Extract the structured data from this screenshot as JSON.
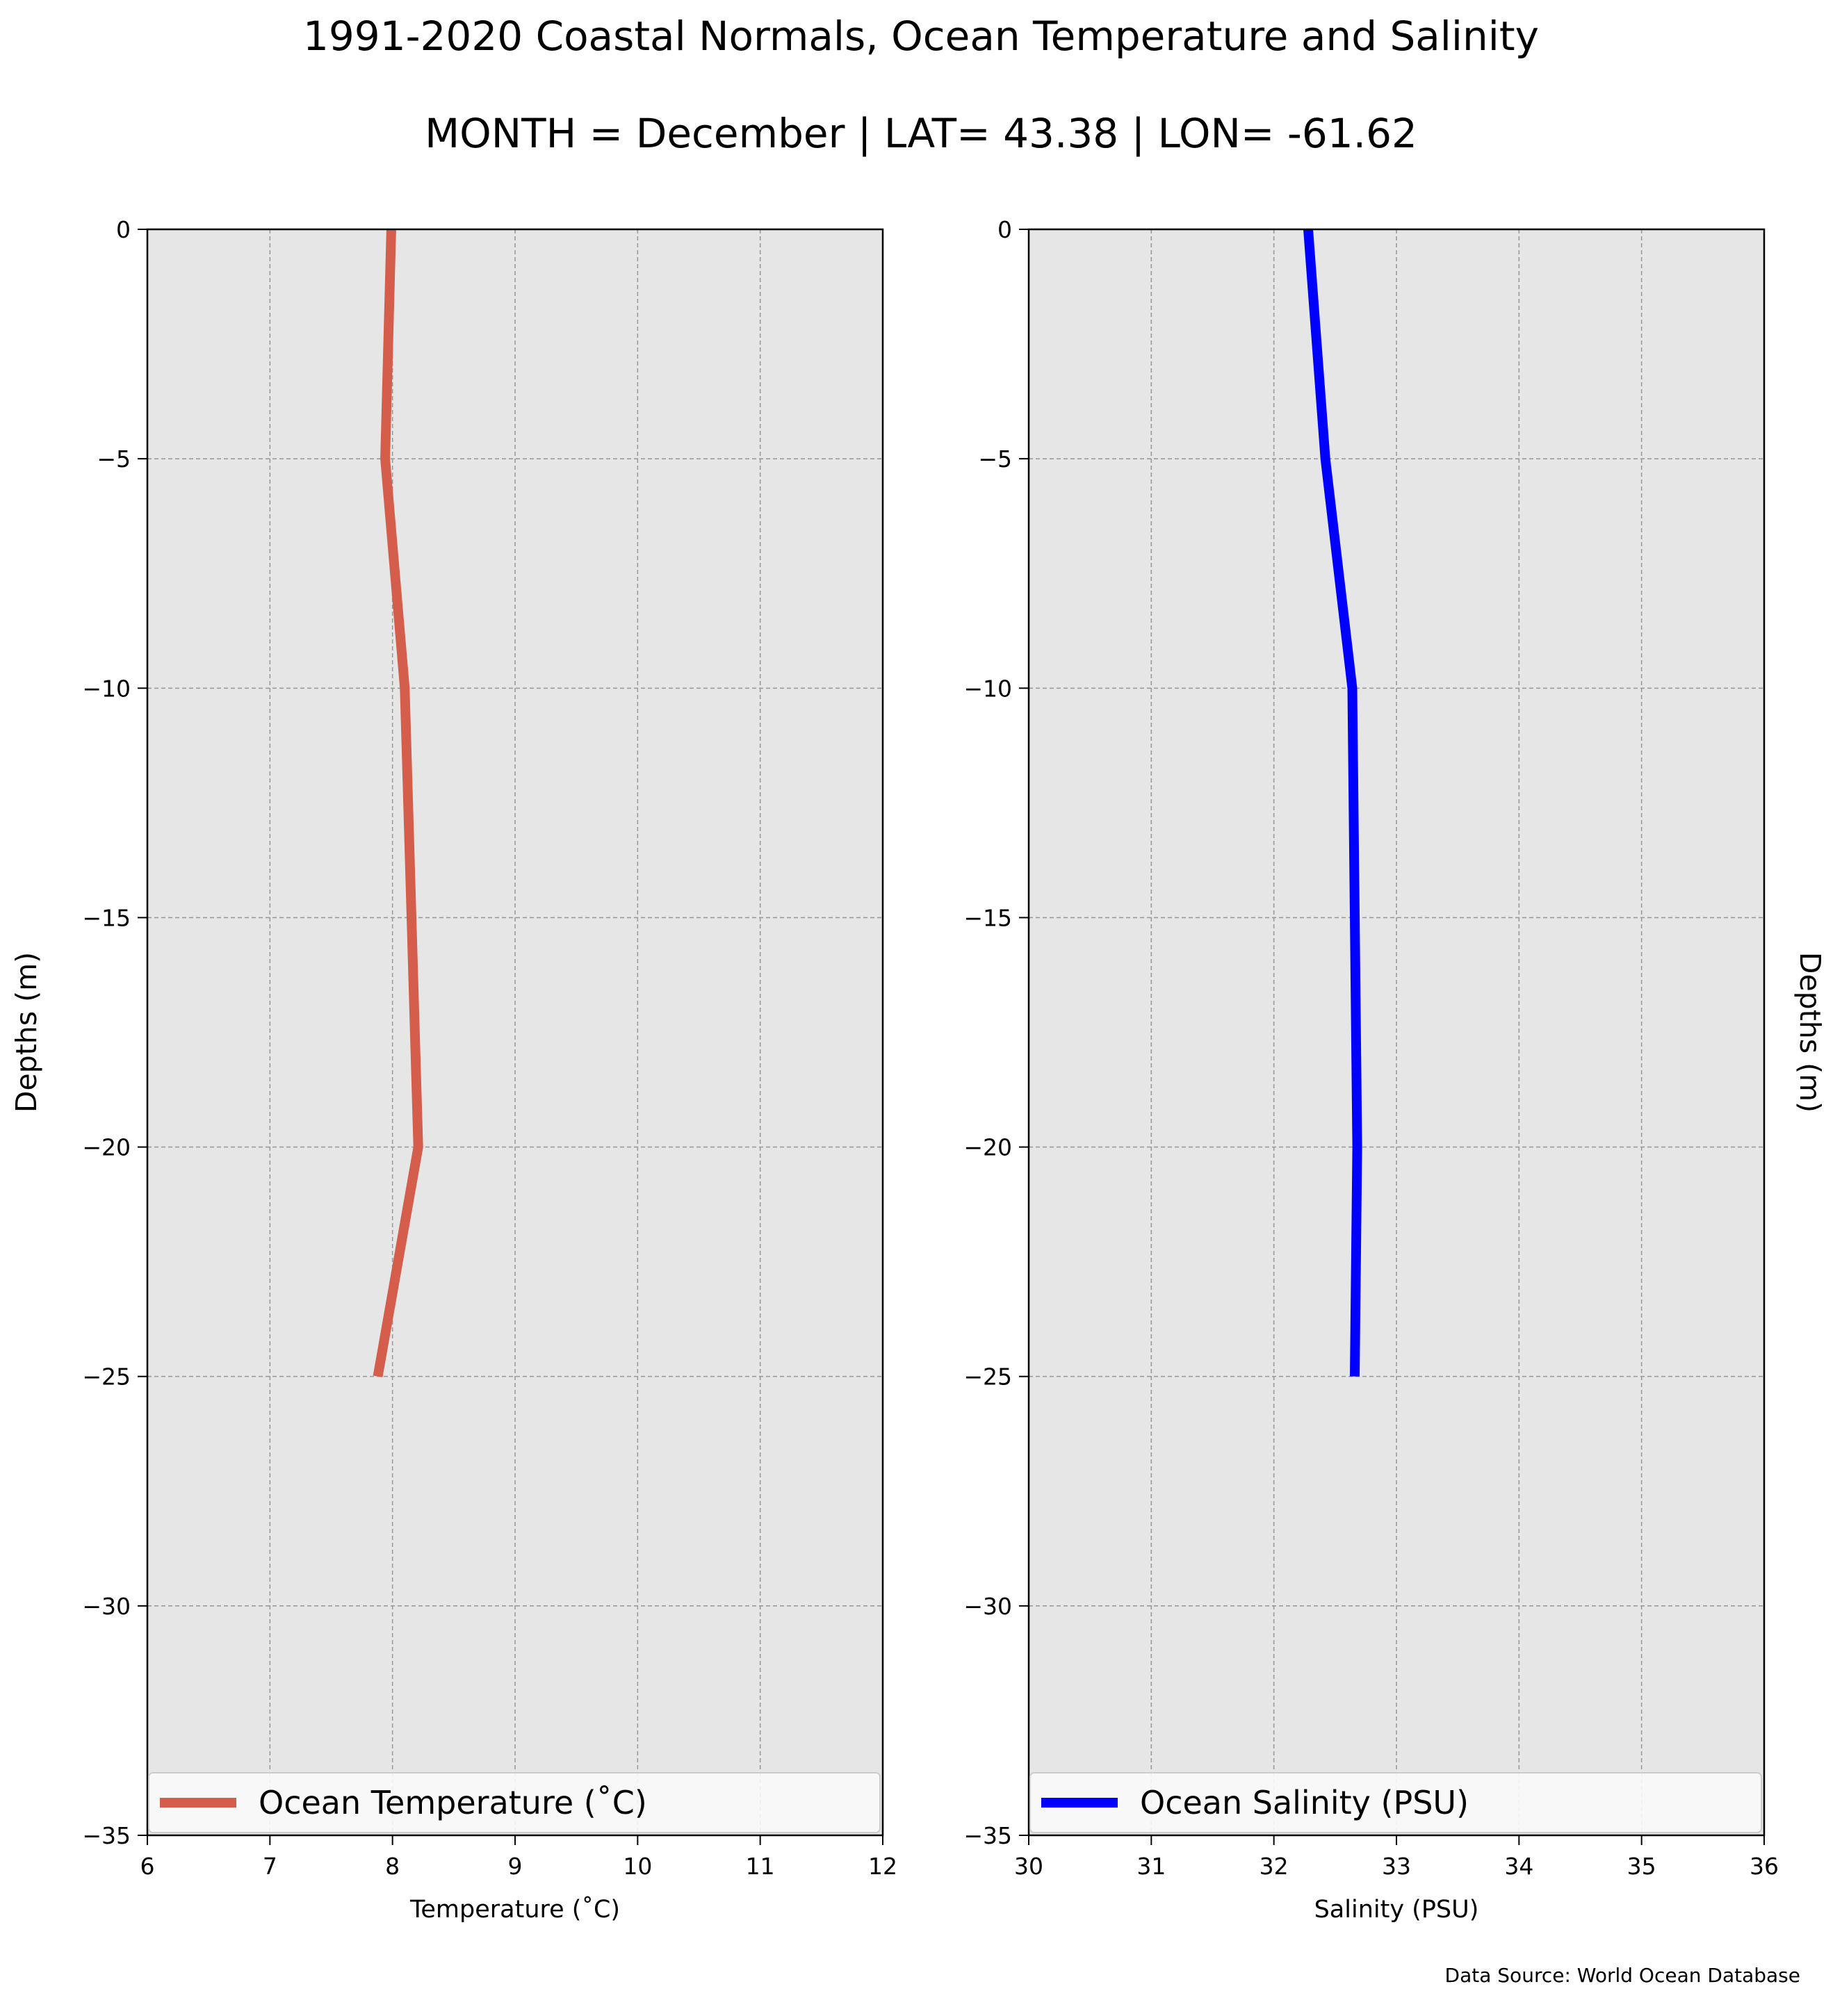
{
  "figure": {
    "title": "1991-2020 Coastal Normals, Ocean Temperature and Salinity",
    "subtitle": "MONTH = December | LAT= 43.38 | LON= -61.62",
    "source": "Data Source: World Ocean Database",
    "colors": {
      "background": "#ffffff",
      "plot_background": "#e6e6e6",
      "grid": "#9a9a9a"
    }
  },
  "chart_data": [
    {
      "type": "line",
      "xlabel": "Temperature ($^\\circ$C)",
      "xlabel_display": "Temperature (˚C)",
      "ylabel": "Depths (m)",
      "xlim": [
        6,
        12
      ],
      "ylim": [
        -35,
        0
      ],
      "xticks": [
        6,
        7,
        8,
        9,
        10,
        11,
        12
      ],
      "yticks": [
        0,
        -5,
        -10,
        -15,
        -20,
        -25,
        -30,
        -35
      ],
      "grid": true,
      "legend_position": "bottom",
      "series": [
        {
          "name": "Ocean Temperature (˚C)",
          "color": "#d45d4b",
          "x": [
            7.99,
            7.94,
            8.1,
            8.21,
            7.88
          ],
          "y": [
            0,
            -5,
            -10,
            -20,
            -25
          ]
        }
      ]
    },
    {
      "type": "line",
      "xlabel": "Salinity (PSU)",
      "ylabel": "Depths (m)",
      "ylabel_side": "right",
      "xlim": [
        30,
        36
      ],
      "ylim": [
        -35,
        0
      ],
      "xticks": [
        30,
        31,
        32,
        33,
        34,
        35,
        36
      ],
      "yticks": [
        0,
        -5,
        -10,
        -15,
        -20,
        -25,
        -30,
        -35
      ],
      "grid": true,
      "legend_position": "bottom",
      "series": [
        {
          "name": "Ocean Salinity (PSU)",
          "color": "#0000ff",
          "x": [
            32.28,
            32.42,
            32.64,
            32.68,
            32.66
          ],
          "y": [
            0,
            -5,
            -10,
            -20,
            -25
          ]
        }
      ]
    }
  ]
}
